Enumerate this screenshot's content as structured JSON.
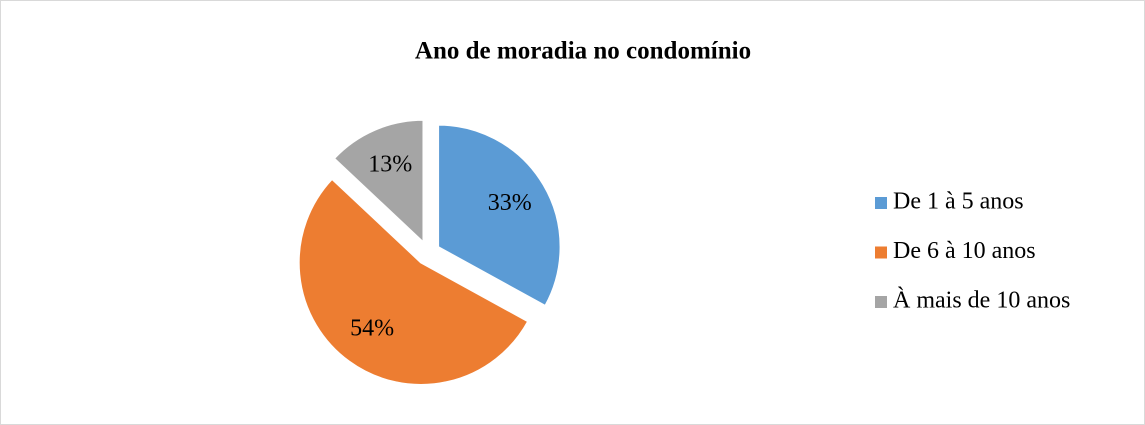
{
  "chart_data": {
    "type": "pie",
    "title": "Ano de moradia no condomínio",
    "categories": [
      "De 1 à 5 anos",
      "De 6 à 10 anos",
      "À mais de 10 anos"
    ],
    "values": [
      33,
      54,
      13
    ],
    "value_labels": [
      "33%",
      "54%",
      "13%"
    ],
    "colors": [
      "#5b9bd5",
      "#ed7d31",
      "#a5a5a5"
    ],
    "legend": "right"
  }
}
